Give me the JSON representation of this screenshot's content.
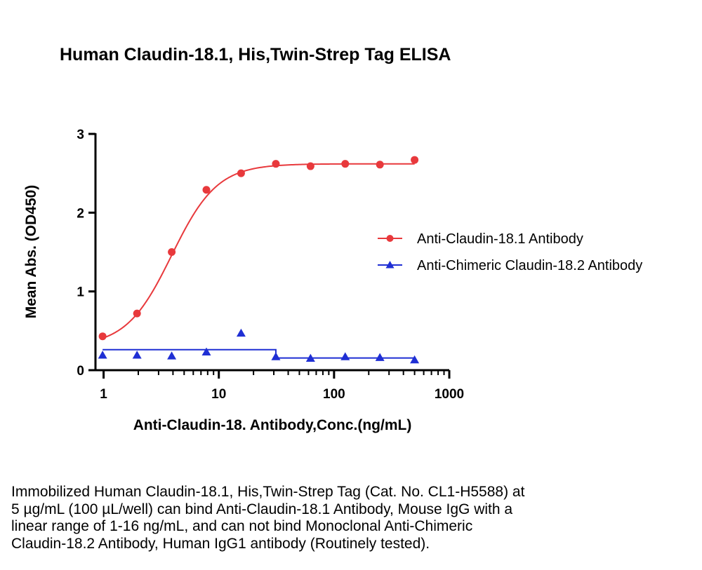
{
  "title": "Human Claudin-18.1, His,Twin-Strep Tag ELISA",
  "caption_lines": [
    "Immobilized Human Claudin-18.1, His,Twin-Strep Tag (Cat. No. CL1-H5588) at",
    "5 µg/mL (100 µL/well) can bind Anti-Claudin-18.1 Antibody, Mouse IgG with a",
    "linear range of 1-16 ng/mL, and can not bind Monoclonal Anti-Chimeric",
    "Claudin-18.2 Antibody, Human IgG1 antibody (Routinely tested)."
  ],
  "chart_data": {
    "type": "scatter",
    "xlabel": "Anti-Claudin-18. Antibody,Conc.(ng/mL)",
    "ylabel": "Mean Abs. (OD450)",
    "x_scale": "log",
    "xlim": [
      0.85,
      1000
    ],
    "ylim": [
      0,
      3
    ],
    "x_ticks": [
      1,
      10,
      100,
      1000
    ],
    "x_tick_labels": [
      "1",
      "10",
      "100",
      "1000"
    ],
    "y_ticks": [
      0,
      1,
      2,
      3
    ],
    "y_tick_labels": [
      "0",
      "1",
      "2",
      "3"
    ],
    "grid": false,
    "legend_position": "right",
    "series": [
      {
        "name": "Anti-Claudin-18.1 Antibody",
        "color": "#e8393c",
        "marker": "circle",
        "x": [
          0.98,
          1.95,
          3.9,
          7.8,
          15.6,
          31.25,
          62.5,
          125,
          250,
          500
        ],
        "y": [
          0.43,
          0.72,
          1.5,
          2.29,
          2.5,
          2.62,
          2.59,
          2.62,
          2.61,
          2.67
        ],
        "fit": "4PL",
        "fit_params": {
          "bottom": 0.3,
          "top": 2.62,
          "ec50": 3.9,
          "hill": 2.2
        }
      },
      {
        "name": "Anti-Chimeric Claudin-18.2 Antibody",
        "color": "#1f2fd4",
        "marker": "triangle",
        "x": [
          0.98,
          1.95,
          3.9,
          7.8,
          15.6,
          31.25,
          62.5,
          125,
          250,
          500
        ],
        "y": [
          0.19,
          0.19,
          0.18,
          0.23,
          0.47,
          0.17,
          0.15,
          0.17,
          0.16,
          0.13
        ],
        "fit": "step",
        "fit_segments": [
          {
            "x": [
              0.98,
              31.25
            ],
            "y": 0.26
          },
          {
            "x": [
              31.25,
              500
            ],
            "y": 0.155
          }
        ]
      }
    ]
  }
}
